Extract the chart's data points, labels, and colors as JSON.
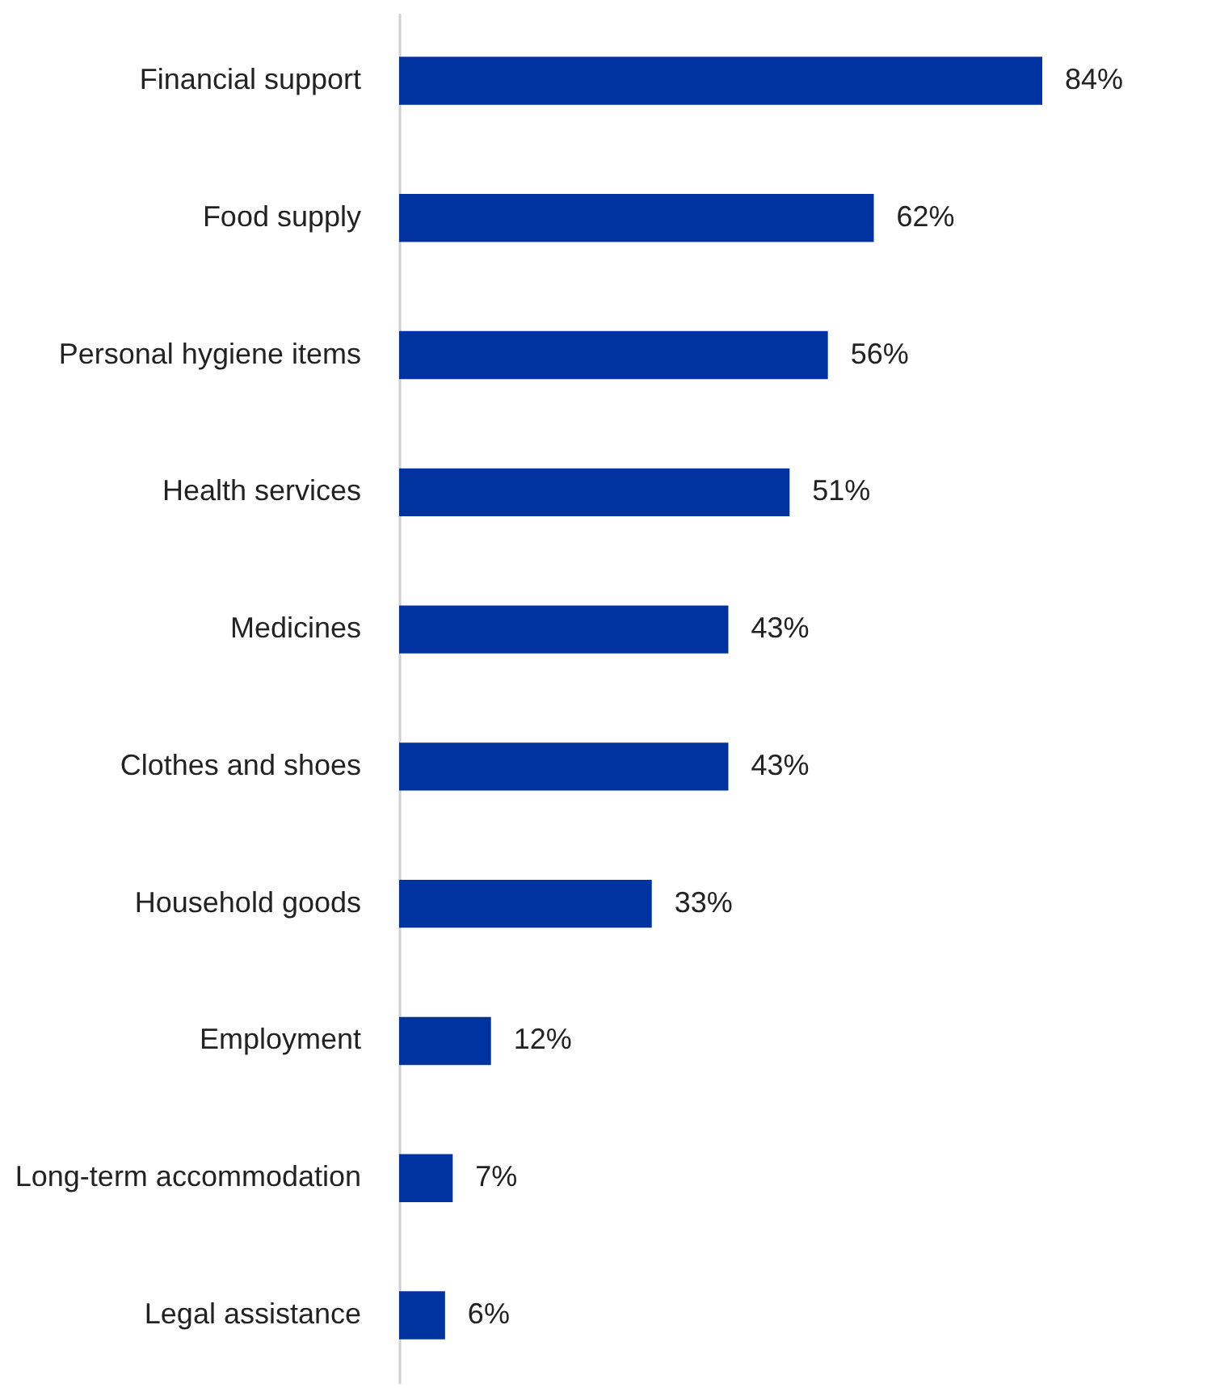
{
  "chart_data": {
    "type": "bar",
    "orientation": "horizontal",
    "categories": [
      "Financial support",
      "Food supply",
      "Personal hygiene items",
      "Health services",
      "Medicines",
      "Clothes and shoes",
      "Household goods",
      "Employment",
      "Long-term accommodation",
      "Legal assistance"
    ],
    "values": [
      84,
      62,
      56,
      51,
      43,
      43,
      33,
      12,
      7,
      6
    ],
    "value_labels": [
      "84%",
      "62%",
      "56%",
      "51%",
      "43%",
      "43%",
      "33%",
      "12%",
      "7%",
      "6%"
    ],
    "color": "#0033a0"
  }
}
